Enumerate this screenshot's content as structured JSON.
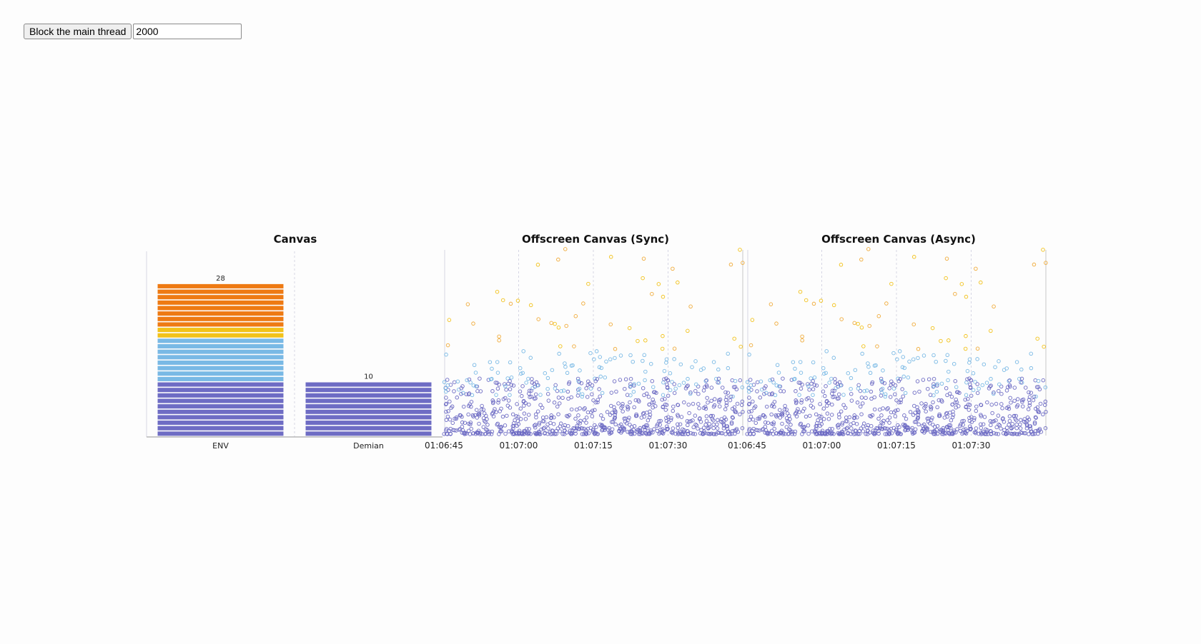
{
  "controls": {
    "block_button_label": "Block the main thread",
    "duration_value": "2000"
  },
  "colors": {
    "purple": "#6e6cc4",
    "blue": "#79b9e5",
    "yellow": "#f2c21a",
    "orange": "#ee7a13",
    "grid": "#d6d6e4"
  },
  "chart_data": [
    {
      "type": "bar",
      "title": "Canvas",
      "categories": [
        "ENV",
        "Demian"
      ],
      "values": [
        28,
        10
      ],
      "stacks": [
        {
          "purple": 10,
          "blue": 8,
          "yellow": 2,
          "orange": 8
        },
        {
          "purple": 10,
          "blue": 0,
          "yellow": 0,
          "orange": 0
        }
      ],
      "ylim": [
        0,
        34
      ],
      "grid": true
    },
    {
      "type": "scatter",
      "title": "Offscreen Canvas (Sync)",
      "x_tick_labels": [
        "01:06:45",
        "01:07:00",
        "01:07:15",
        "01:07:30"
      ],
      "x_tick_seconds": [
        0,
        15,
        30,
        45
      ],
      "xlim_seconds": [
        0,
        60
      ],
      "ylim": [
        0,
        100
      ],
      "grid": true
    },
    {
      "type": "scatter",
      "title": "Offscreen Canvas (Async)",
      "x_tick_labels": [
        "01:06:45",
        "01:07:00",
        "01:07:15",
        "01:07:30"
      ],
      "x_tick_seconds": [
        0,
        15,
        30,
        45
      ],
      "xlim_seconds": [
        0,
        60
      ],
      "ylim": [
        0,
        100
      ],
      "grid": true
    }
  ]
}
